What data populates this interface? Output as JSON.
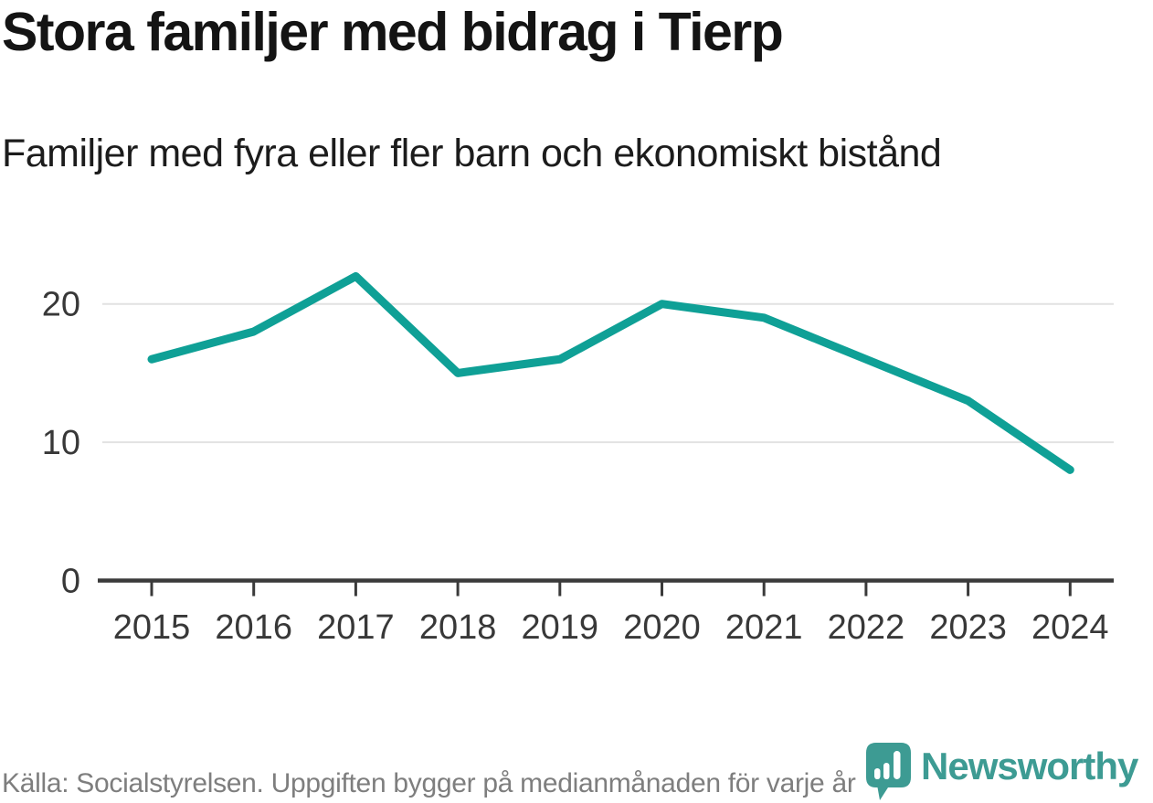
{
  "header": {
    "title": "Stora familjer med bidrag i Tierp",
    "subtitle": "Familjer med fyra eller fler barn och ekonomiskt bistånd"
  },
  "footer": {
    "source": "Källa: Socialstyrelsen. Uppgiften bygger på medianmånaden för varje år",
    "brand": "Newsworthy",
    "logo_icon": "bar-chart-badge-icon"
  },
  "colors": {
    "line": "#0fa096",
    "logo_teal": "#3d9b93",
    "grid": "#e2e2e2",
    "axis": "#3a3a3a",
    "tick_text": "#383838",
    "title_text": "#141414",
    "source_text": "#7e7e7e"
  },
  "chart_data": {
    "type": "line",
    "title": "Stora familjer med bidrag i Tierp",
    "subtitle": "Familjer med fyra eller fler barn och ekonomiskt bistånd",
    "categories": [
      "2015",
      "2016",
      "2017",
      "2018",
      "2019",
      "2020",
      "2021",
      "2022",
      "2023",
      "2024"
    ],
    "series": [
      {
        "name": "Familjer med fyra eller fler barn och ekonomiskt bistånd",
        "values": [
          16,
          18,
          22,
          15,
          16,
          20,
          19,
          16,
          13,
          8
        ]
      }
    ],
    "xlabel": "",
    "ylabel": "",
    "ylim": [
      0,
      25
    ],
    "yticks": [
      0,
      10,
      20
    ],
    "grid": "horizontal-only",
    "legend": "none",
    "line_color": "#0fa096",
    "source": "Källa: Socialstyrelsen. Uppgiften bygger på medianmånaden för varje år"
  }
}
